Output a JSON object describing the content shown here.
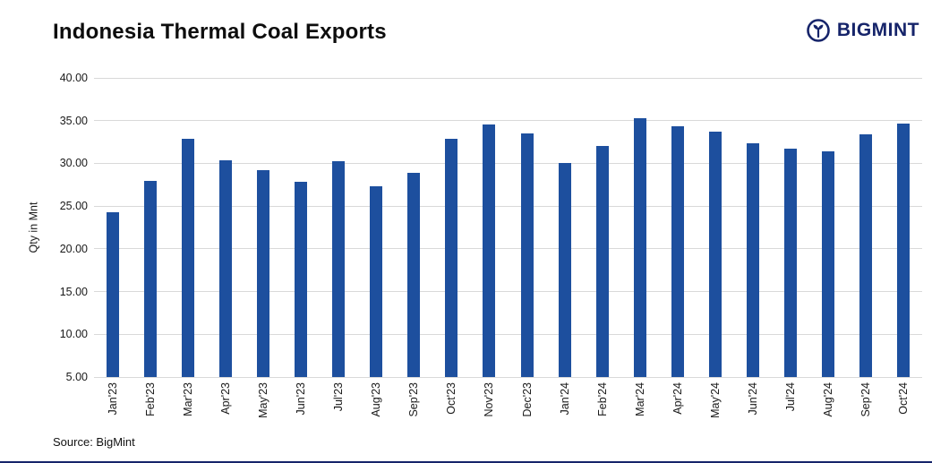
{
  "header": {
    "title": "Indonesia Thermal Coal Exports",
    "brand": "BIGMINT"
  },
  "footer": {
    "source": "Source: BigMint"
  },
  "colors": {
    "bar": "#1d4f9e",
    "brand": "#16246a",
    "grid": "#d9d9d9"
  },
  "chart_data": {
    "type": "bar",
    "title": "Indonesia Thermal Coal Exports",
    "xlabel": "",
    "ylabel": "Qty in Mnt",
    "ylim": [
      5,
      40
    ],
    "ytick_step": 5,
    "grid": true,
    "legend": "none",
    "categories": [
      "Jan'23",
      "Feb'23",
      "Mar'23",
      "Apr'23",
      "May'23",
      "Jun'23",
      "Jul'23",
      "Aug'23",
      "Sep'23",
      "Oct'23",
      "Nov'23",
      "Dec'23",
      "Jan'24",
      "Feb'24",
      "Mar'24",
      "Apr'24",
      "May'24",
      "Jun'24",
      "Jul'24",
      "Aug'24",
      "Sep'24",
      "Oct'24"
    ],
    "values": [
      24.3,
      28.0,
      32.9,
      30.4,
      29.2,
      27.8,
      30.3,
      27.3,
      28.9,
      32.9,
      34.6,
      33.5,
      30.0,
      32.0,
      35.3,
      34.3,
      33.7,
      32.4,
      31.7,
      31.4,
      33.4,
      34.7
    ]
  }
}
